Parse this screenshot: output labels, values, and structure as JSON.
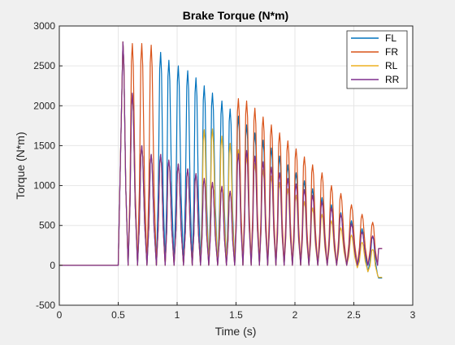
{
  "chart_data": {
    "type": "line",
    "title": "Brake Torque (N*m)",
    "xlabel": "Time (s)",
    "ylabel": "Torque (N*m)",
    "xlim": [
      0,
      3
    ],
    "ylim": [
      -500,
      3000
    ],
    "xticks": [
      0,
      0.5,
      1,
      1.5,
      2,
      2.5,
      3
    ],
    "xtick_labels": [
      "0",
      "0.5",
      "1",
      "1.5",
      "2",
      "2.5",
      "3"
    ],
    "yticks": [
      -500,
      0,
      500,
      1000,
      1500,
      2000,
      2500,
      3000
    ],
    "ytick_labels": [
      "-500",
      "0",
      "500",
      "1000",
      "1500",
      "2000",
      "2500",
      "3000"
    ],
    "grid": true,
    "legend_position": "top-right",
    "series": [
      {
        "name": "FL",
        "color": "#0072BD",
        "brake_onset": 0.5,
        "pulse_times": [
          0.54,
          0.62,
          0.7,
          0.78,
          0.86,
          0.93,
          1.01,
          1.09,
          1.16,
          1.23,
          1.3,
          1.38,
          1.45,
          1.52,
          1.59,
          1.66,
          1.73,
          1.8,
          1.87,
          1.94,
          2.01,
          2.08,
          2.15,
          2.23,
          2.31,
          2.39,
          2.48,
          2.57,
          2.66
        ],
        "pulse_peaks": [
          2800,
          2150,
          1500,
          1390,
          2670,
          2570,
          2500,
          2440,
          2350,
          2250,
          2160,
          2060,
          1960,
          1870,
          1760,
          1660,
          1570,
          1470,
          1370,
          1260,
          1160,
          1060,
          960,
          850,
          760,
          660,
          560,
          460,
          360
        ],
        "pulse_troughs": [
          0,
          0,
          0,
          0,
          0,
          0,
          0,
          0,
          0,
          0,
          0,
          0,
          0,
          0,
          0,
          0,
          0,
          0,
          0,
          0,
          0,
          0,
          0,
          0,
          0,
          0,
          -30,
          -80,
          -120
        ],
        "end_value": -160
      },
      {
        "name": "FR",
        "color": "#D95319",
        "brake_onset": 0.5,
        "pulse_times": [
          0.54,
          0.62,
          0.7,
          0.78,
          0.86,
          0.93,
          1.01,
          1.09,
          1.16,
          1.23,
          1.3,
          1.38,
          1.45,
          1.52,
          1.59,
          1.66,
          1.73,
          1.8,
          1.87,
          1.94,
          2.01,
          2.08,
          2.15,
          2.23,
          2.31,
          2.39,
          2.48,
          2.57,
          2.66
        ],
        "pulse_peaks": [
          2800,
          2780,
          2780,
          2760,
          1390,
          1320,
          1270,
          1210,
          1150,
          1090,
          1040,
          990,
          930,
          2090,
          2060,
          1970,
          1860,
          1760,
          1660,
          1560,
          1460,
          1360,
          1260,
          1160,
          1000,
          900,
          760,
          640,
          540
        ],
        "pulse_troughs": [
          0,
          0,
          0,
          0,
          0,
          0,
          0,
          0,
          0,
          0,
          0,
          0,
          0,
          0,
          0,
          0,
          0,
          0,
          0,
          0,
          0,
          0,
          0,
          0,
          0,
          0,
          0,
          0,
          0
        ],
        "end_value": 210
      },
      {
        "name": "RL",
        "color": "#EDB120",
        "brake_onset": 0.5,
        "pulse_times": [
          0.54,
          0.62,
          0.7,
          0.78,
          0.86,
          0.93,
          1.01,
          1.09,
          1.16,
          1.23,
          1.3,
          1.38,
          1.45,
          1.52,
          1.59,
          1.66,
          1.73,
          1.8,
          1.87,
          1.94,
          2.01,
          2.08,
          2.15,
          2.23,
          2.31,
          2.39,
          2.48,
          2.57,
          2.66
        ],
        "pulse_peaks": [
          2800,
          2150,
          1500,
          1390,
          1390,
          1320,
          1270,
          1210,
          1150,
          1700,
          1710,
          1620,
          1530,
          1450,
          1370,
          1280,
          1200,
          1120,
          1040,
          960,
          880,
          800,
          720,
          640,
          560,
          470,
          380,
          290,
          200
        ],
        "pulse_troughs": [
          0,
          0,
          0,
          0,
          0,
          0,
          0,
          0,
          0,
          0,
          0,
          0,
          0,
          0,
          0,
          0,
          0,
          0,
          0,
          0,
          0,
          0,
          0,
          0,
          0,
          0,
          -30,
          -80,
          -120
        ],
        "end_value": -150
      },
      {
        "name": "RR",
        "color": "#7E2F8E",
        "brake_onset": 0.5,
        "pulse_times": [
          0.54,
          0.62,
          0.7,
          0.78,
          0.86,
          0.93,
          1.01,
          1.09,
          1.16,
          1.23,
          1.3,
          1.38,
          1.45,
          1.52,
          1.59,
          1.66,
          1.73,
          1.8,
          1.87,
          1.94,
          2.01,
          2.08,
          2.15,
          2.23,
          2.31,
          2.39,
          2.48,
          2.57,
          2.66
        ],
        "pulse_peaks": [
          2800,
          2160,
          1500,
          1390,
          1390,
          1320,
          1270,
          1210,
          1150,
          1090,
          1040,
          990,
          930,
          1400,
          1440,
          1370,
          1300,
          1230,
          1160,
          1090,
          1020,
          950,
          880,
          800,
          720,
          640,
          520,
          420,
          370
        ],
        "pulse_troughs": [
          0,
          0,
          0,
          0,
          0,
          0,
          0,
          0,
          0,
          0,
          0,
          0,
          0,
          0,
          0,
          0,
          0,
          0,
          0,
          0,
          0,
          0,
          0,
          0,
          0,
          0,
          0,
          0,
          0
        ],
        "end_value": 210
      }
    ]
  }
}
